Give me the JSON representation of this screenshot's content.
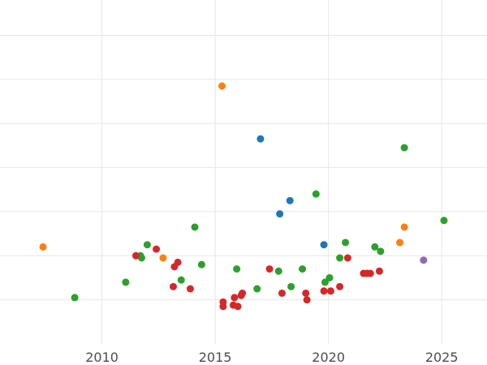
{
  "chart_data": {
    "type": "scatter",
    "title": "",
    "xlabel": "",
    "ylabel": "",
    "xlim": [
      2005.5,
      2027
    ],
    "ylim": [
      0,
      7.8
    ],
    "grid": true,
    "legend": "none",
    "x_ticks": [
      2010,
      2015,
      2020,
      2025
    ],
    "x_tick_labels": [
      "2010",
      "2015",
      "2020",
      "2025"
    ],
    "y_ticks": [
      1,
      2,
      3,
      4,
      5,
      6,
      7
    ],
    "series": [
      {
        "color": "#1f77b4",
        "points": [
          [
            2017.0,
            4.65
          ],
          [
            2017.85,
            2.95
          ],
          [
            2018.3,
            3.25
          ],
          [
            2019.8,
            2.25
          ]
        ]
      },
      {
        "color": "#ff7f0e",
        "points": [
          [
            2007.4,
            2.2
          ],
          [
            2012.7,
            1.95
          ],
          [
            2015.3,
            5.85
          ],
          [
            2023.15,
            2.3
          ],
          [
            2023.35,
            2.65
          ]
        ]
      },
      {
        "color": "#2ca02c",
        "points": [
          [
            2008.8,
            1.05
          ],
          [
            2011.05,
            1.4
          ],
          [
            2011.7,
            2.0
          ],
          [
            2011.75,
            1.95
          ],
          [
            2012.0,
            2.25
          ],
          [
            2013.5,
            1.45
          ],
          [
            2014.1,
            2.65
          ],
          [
            2014.4,
            1.8
          ],
          [
            2015.95,
            1.7
          ],
          [
            2016.85,
            1.25
          ],
          [
            2017.8,
            1.65
          ],
          [
            2018.35,
            1.3
          ],
          [
            2018.85,
            1.7
          ],
          [
            2019.45,
            3.4
          ],
          [
            2019.85,
            1.4
          ],
          [
            2020.05,
            1.5
          ],
          [
            2020.5,
            1.95
          ],
          [
            2020.75,
            2.3
          ],
          [
            2022.05,
            2.2
          ],
          [
            2022.3,
            2.1
          ],
          [
            2023.35,
            4.45
          ],
          [
            2025.1,
            2.8
          ]
        ]
      },
      {
        "color": "#d62728",
        "points": [
          [
            2011.5,
            2.0
          ],
          [
            2012.4,
            2.15
          ],
          [
            2013.15,
            1.3
          ],
          [
            2013.2,
            1.75
          ],
          [
            2013.35,
            1.85
          ],
          [
            2013.9,
            1.25
          ],
          [
            2015.35,
            0.95
          ],
          [
            2015.35,
            0.85
          ],
          [
            2015.8,
            0.88
          ],
          [
            2015.85,
            1.05
          ],
          [
            2016.0,
            0.85
          ],
          [
            2016.15,
            1.1
          ],
          [
            2016.2,
            1.15
          ],
          [
            2017.4,
            1.7
          ],
          [
            2017.95,
            1.15
          ],
          [
            2019.0,
            1.15
          ],
          [
            2019.05,
            1.0
          ],
          [
            2019.8,
            1.2
          ],
          [
            2020.1,
            1.2
          ],
          [
            2020.5,
            1.3
          ],
          [
            2020.85,
            1.95
          ],
          [
            2021.55,
            1.6
          ],
          [
            2021.7,
            1.6
          ],
          [
            2021.85,
            1.6
          ],
          [
            2022.25,
            1.65
          ]
        ]
      },
      {
        "color": "#9467bd",
        "points": [
          [
            2024.2,
            1.9
          ]
        ]
      }
    ]
  }
}
